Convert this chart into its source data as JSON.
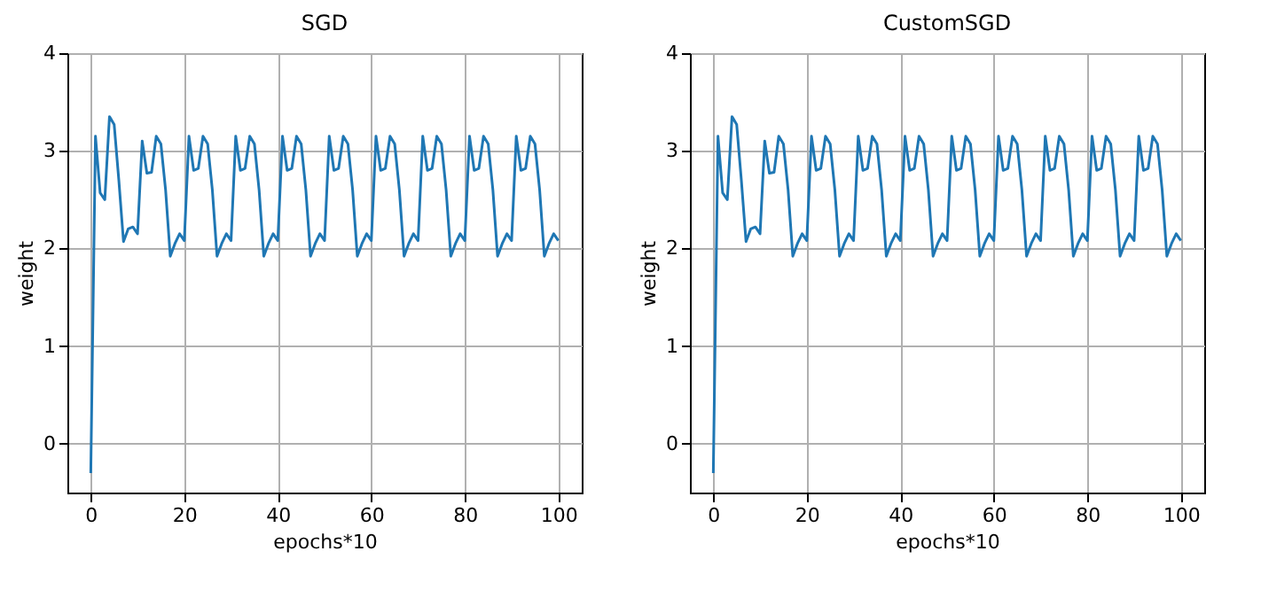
{
  "chart_data": [
    {
      "type": "line",
      "title": "SGD",
      "xlabel": "epochs*10",
      "ylabel": "weight",
      "x": [
        0,
        1,
        2,
        3,
        4,
        5,
        6,
        7,
        8,
        9,
        10,
        11,
        12,
        13,
        14,
        15,
        16,
        17,
        18,
        19,
        20,
        21,
        22,
        23,
        24,
        25,
        26,
        27,
        28,
        29,
        30,
        31,
        32,
        33,
        34,
        35,
        36,
        37,
        38,
        39,
        40,
        41,
        42,
        43,
        44,
        45,
        46,
        47,
        48,
        49,
        50,
        51,
        52,
        53,
        54,
        55,
        56,
        57,
        58,
        59,
        60,
        61,
        62,
        63,
        64,
        65,
        66,
        67,
        68,
        69,
        70,
        71,
        72,
        73,
        74,
        75,
        76,
        77,
        78,
        79,
        80,
        81,
        82,
        83,
        84,
        85,
        86,
        87,
        88,
        89,
        90,
        91,
        92,
        93,
        94,
        95,
        96,
        97,
        98,
        99,
        100
      ],
      "series": [
        {
          "color": "#1f77b4",
          "values": [
            -0.3,
            3.15,
            2.57,
            2.5,
            3.35,
            3.27,
            2.7,
            2.07,
            2.2,
            2.22,
            2.15,
            3.1,
            2.77,
            2.78,
            3.15,
            3.07,
            2.6,
            1.92,
            2.05,
            2.15,
            2.08,
            3.15,
            2.8,
            2.82,
            3.15,
            3.07,
            2.6,
            1.92,
            2.05,
            2.15,
            2.08,
            3.15,
            2.8,
            2.82,
            3.15,
            3.07,
            2.6,
            1.92,
            2.05,
            2.15,
            2.08,
            3.15,
            2.8,
            2.82,
            3.15,
            3.07,
            2.6,
            1.92,
            2.05,
            2.15,
            2.08,
            3.15,
            2.8,
            2.82,
            3.15,
            3.07,
            2.6,
            1.92,
            2.05,
            2.15,
            2.08,
            3.15,
            2.8,
            2.82,
            3.15,
            3.07,
            2.6,
            1.92,
            2.05,
            2.15,
            2.08,
            3.15,
            2.8,
            2.82,
            3.15,
            3.07,
            2.6,
            1.92,
            2.05,
            2.15,
            2.08,
            3.15,
            2.8,
            2.82,
            3.15,
            3.07,
            2.6,
            1.92,
            2.05,
            2.15,
            2.08,
            3.15,
            2.8,
            2.82,
            3.15,
            3.07,
            2.6,
            1.92,
            2.05,
            2.15,
            2.08
          ]
        }
      ],
      "xlim": [
        -5,
        105
      ],
      "xticks": [
        0,
        20,
        40,
        60,
        80,
        100
      ],
      "ylim": [
        -0.5,
        4
      ],
      "yticks": [
        0,
        1,
        2,
        3,
        4
      ],
      "grid": true
    },
    {
      "type": "line",
      "title": "CustomSGD",
      "xlabel": "epochs*10",
      "ylabel": "weight",
      "x": [
        0,
        1,
        2,
        3,
        4,
        5,
        6,
        7,
        8,
        9,
        10,
        11,
        12,
        13,
        14,
        15,
        16,
        17,
        18,
        19,
        20,
        21,
        22,
        23,
        24,
        25,
        26,
        27,
        28,
        29,
        30,
        31,
        32,
        33,
        34,
        35,
        36,
        37,
        38,
        39,
        40,
        41,
        42,
        43,
        44,
        45,
        46,
        47,
        48,
        49,
        50,
        51,
        52,
        53,
        54,
        55,
        56,
        57,
        58,
        59,
        60,
        61,
        62,
        63,
        64,
        65,
        66,
        67,
        68,
        69,
        70,
        71,
        72,
        73,
        74,
        75,
        76,
        77,
        78,
        79,
        80,
        81,
        82,
        83,
        84,
        85,
        86,
        87,
        88,
        89,
        90,
        91,
        92,
        93,
        94,
        95,
        96,
        97,
        98,
        99,
        100
      ],
      "series": [
        {
          "color": "#1f77b4",
          "values": [
            -0.3,
            3.15,
            2.57,
            2.5,
            3.35,
            3.27,
            2.7,
            2.07,
            2.2,
            2.22,
            2.15,
            3.1,
            2.77,
            2.78,
            3.15,
            3.07,
            2.6,
            1.92,
            2.05,
            2.15,
            2.08,
            3.15,
            2.8,
            2.82,
            3.15,
            3.07,
            2.6,
            1.92,
            2.05,
            2.15,
            2.08,
            3.15,
            2.8,
            2.82,
            3.15,
            3.07,
            2.6,
            1.92,
            2.05,
            2.15,
            2.08,
            3.15,
            2.8,
            2.82,
            3.15,
            3.07,
            2.6,
            1.92,
            2.05,
            2.15,
            2.08,
            3.15,
            2.8,
            2.82,
            3.15,
            3.07,
            2.6,
            1.92,
            2.05,
            2.15,
            2.08,
            3.15,
            2.8,
            2.82,
            3.15,
            3.07,
            2.6,
            1.92,
            2.05,
            2.15,
            2.08,
            3.15,
            2.8,
            2.82,
            3.15,
            3.07,
            2.6,
            1.92,
            2.05,
            2.15,
            2.08,
            3.15,
            2.8,
            2.82,
            3.15,
            3.07,
            2.6,
            1.92,
            2.05,
            2.15,
            2.08,
            3.15,
            2.8,
            2.82,
            3.15,
            3.07,
            2.6,
            1.92,
            2.05,
            2.15,
            2.08
          ]
        }
      ],
      "xlim": [
        -5,
        105
      ],
      "xticks": [
        0,
        20,
        40,
        60,
        80,
        100
      ],
      "ylim": [
        -0.5,
        4
      ],
      "yticks": [
        0,
        1,
        2,
        3,
        4
      ],
      "grid": true
    }
  ]
}
